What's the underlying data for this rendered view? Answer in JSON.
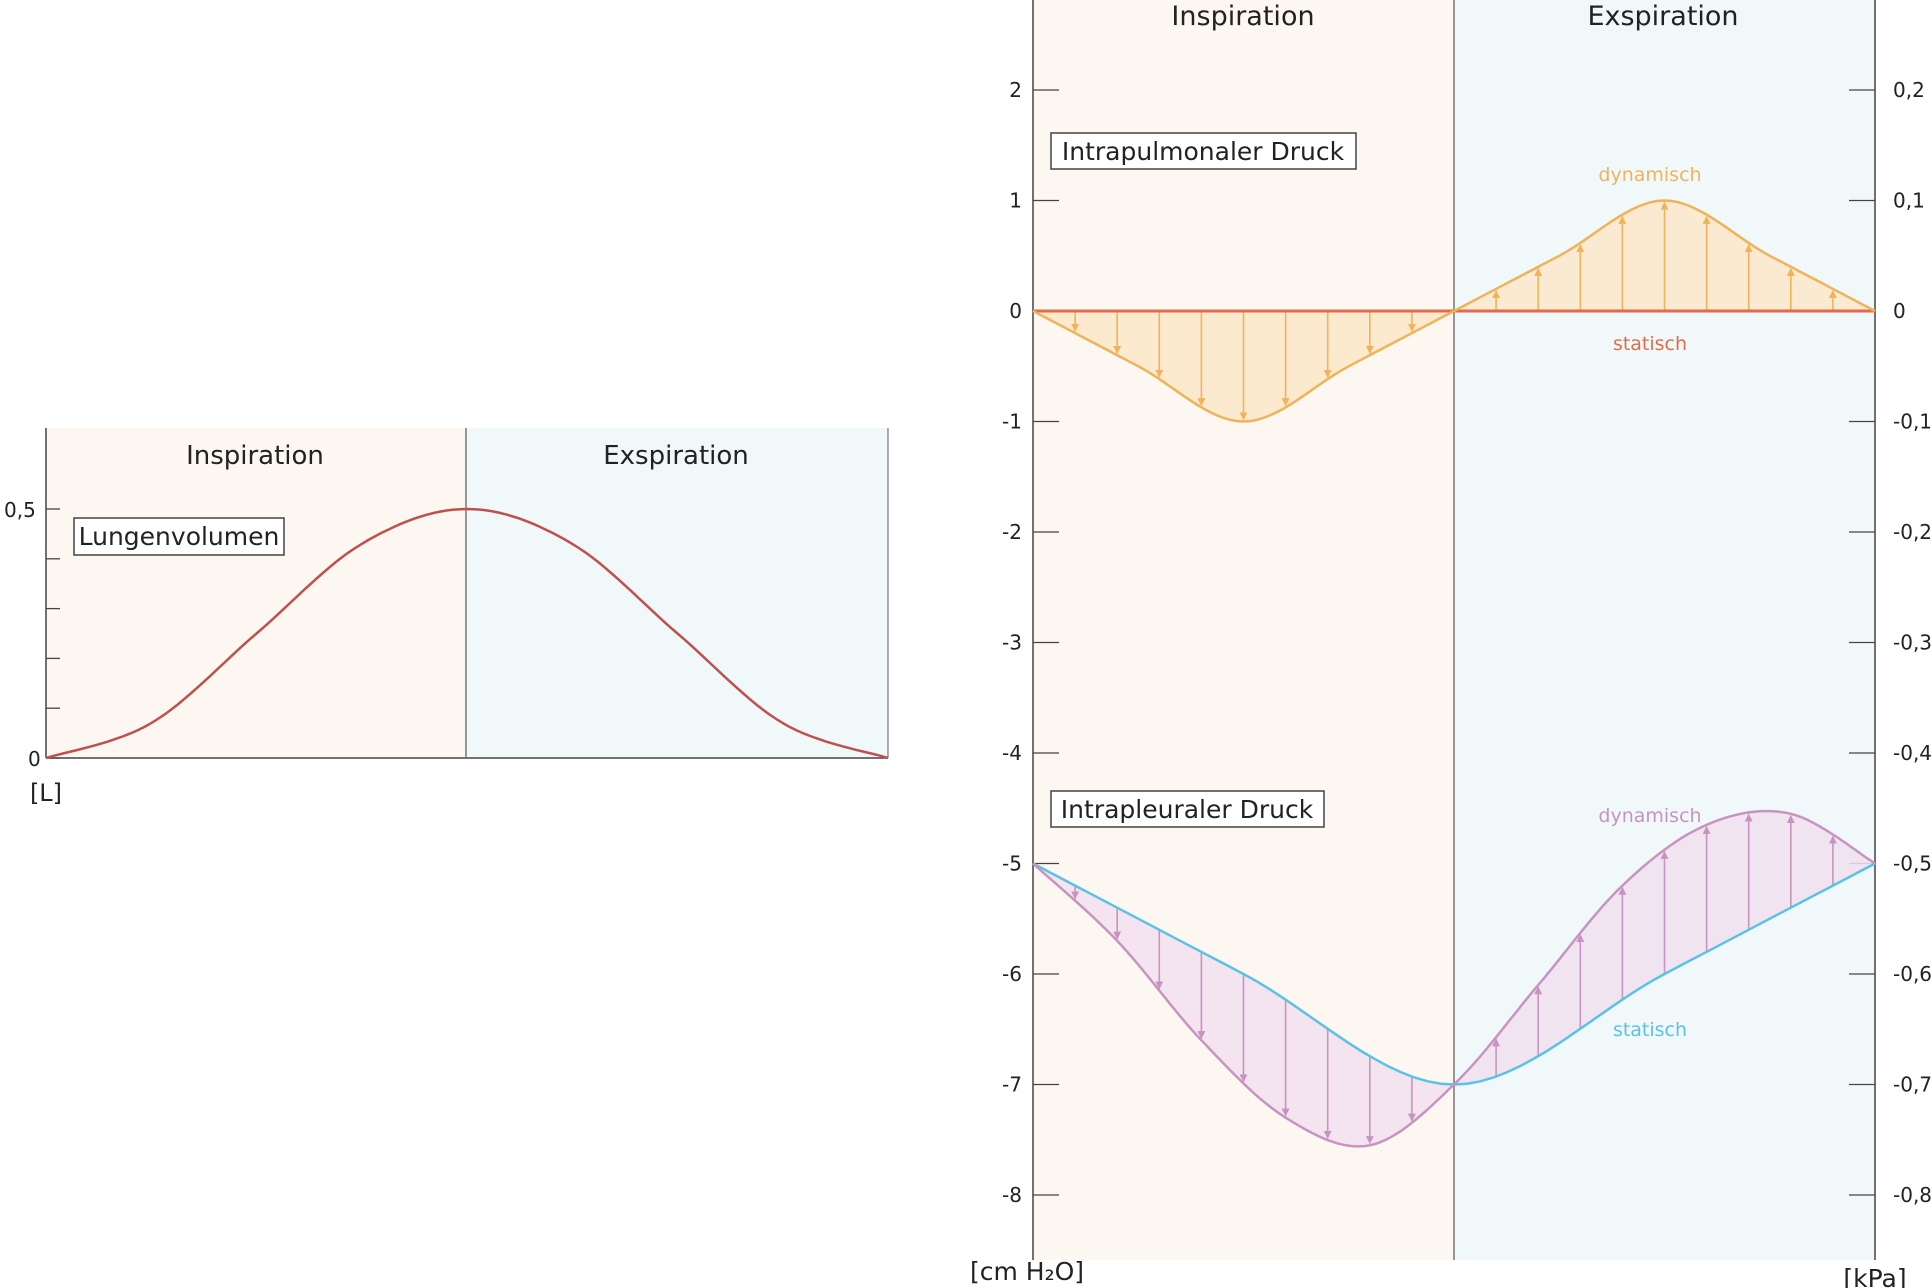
{
  "colors": {
    "insp_bg": "#fdf7f1",
    "exsp_bg": "#f0f8fa",
    "volume": "#c0504d",
    "pulm_dyn": "#f0b35a",
    "pulm_dyn_fill": "#fce8c9",
    "pulm_stat": "#e06c4c",
    "pleu_dyn": "#c794c1",
    "pleu_dyn_fill": "#f1e1ef",
    "pleu_stat": "#5bc1e6",
    "axis": "#444444",
    "divider": "#777777"
  },
  "chart_data": [
    {
      "type": "line",
      "phase_labels": [
        "Inspiration",
        "Exspiration"
      ],
      "box_label": "Lungenvolumen",
      "y_unit": "[L]",
      "ylim": [
        0,
        0.5
      ],
      "yticks": [
        {
          "value": 0,
          "label": "0"
        },
        {
          "value": 0.1,
          "label": ""
        },
        {
          "value": 0.2,
          "label": ""
        },
        {
          "value": 0.3,
          "label": ""
        },
        {
          "value": 0.4,
          "label": ""
        },
        {
          "value": 0.5,
          "label": "0,5"
        }
      ],
      "series": [
        {
          "x": [
            0,
            0.125,
            0.25,
            0.375,
            0.5,
            0.625,
            0.75,
            0.875,
            1.0
          ],
          "y": [
            0,
            0.07,
            0.25,
            0.43,
            0.5,
            0.43,
            0.25,
            0.07,
            0
          ]
        }
      ]
    },
    {
      "type": "line",
      "phase_labels": [
        "Inspiration",
        "Exspiration"
      ],
      "left_unit": "[cm H₂O]",
      "right_unit": "[kPa]",
      "ylim": [
        -8.6,
        2.8
      ],
      "left_ticks": [
        {
          "value": 2,
          "label": "2"
        },
        {
          "value": 1,
          "label": "1"
        },
        {
          "value": 0,
          "label": "0"
        },
        {
          "value": -1,
          "label": "-1"
        },
        {
          "value": -2,
          "label": "-2"
        },
        {
          "value": -3,
          "label": "-3"
        },
        {
          "value": -4,
          "label": "-4"
        },
        {
          "value": -5,
          "label": "-5"
        },
        {
          "value": -6,
          "label": "-6"
        },
        {
          "value": -7,
          "label": "-7"
        },
        {
          "value": -8,
          "label": "-8"
        }
      ],
      "right_ticks": [
        {
          "value": 2,
          "label": "0,2"
        },
        {
          "value": 1,
          "label": "0,1"
        },
        {
          "value": 0,
          "label": "0"
        },
        {
          "value": -1,
          "label": "-0,1"
        },
        {
          "value": -2,
          "label": "-0,2"
        },
        {
          "value": -3,
          "label": "-0,3"
        },
        {
          "value": -4,
          "label": "-0,4"
        },
        {
          "value": -5,
          "label": "-0,5"
        },
        {
          "value": -6,
          "label": "-0,6"
        },
        {
          "value": -7,
          "label": "-0,7"
        },
        {
          "value": -8,
          "label": "-0,8"
        }
      ],
      "intrapulmonal": {
        "box_label": "Intrapulmonaler Druck",
        "dynamic_label": "dynamisch",
        "static_label": "statisch",
        "dynamic": {
          "x": [
            0,
            0.125,
            0.25,
            0.375,
            0.5,
            0.625,
            0.75,
            0.875,
            1.0
          ],
          "y": [
            0,
            -0.5,
            -1,
            -0.5,
            0,
            0.5,
            1,
            0.5,
            0
          ]
        },
        "static": {
          "x": [
            0,
            1
          ],
          "y": [
            0,
            0
          ]
        }
      },
      "intrapleural": {
        "box_label": "Intrapleuraler Druck",
        "dynamic_label": "dynamisch",
        "static_label": "statisch",
        "dynamic": {
          "x": [
            0,
            0.1,
            0.2,
            0.3,
            0.4,
            0.5,
            0.6,
            0.7,
            0.8,
            0.9,
            1.0
          ],
          "y": [
            -5,
            -5.7,
            -6.6,
            -7.3,
            -7.55,
            -7,
            -6.1,
            -5.2,
            -4.65,
            -4.55,
            -5
          ]
        },
        "static": {
          "x": [
            0,
            0.25,
            0.5,
            0.75,
            1.0
          ],
          "y": [
            -5,
            -6.0,
            -7,
            -6.0,
            -5
          ]
        }
      }
    }
  ]
}
